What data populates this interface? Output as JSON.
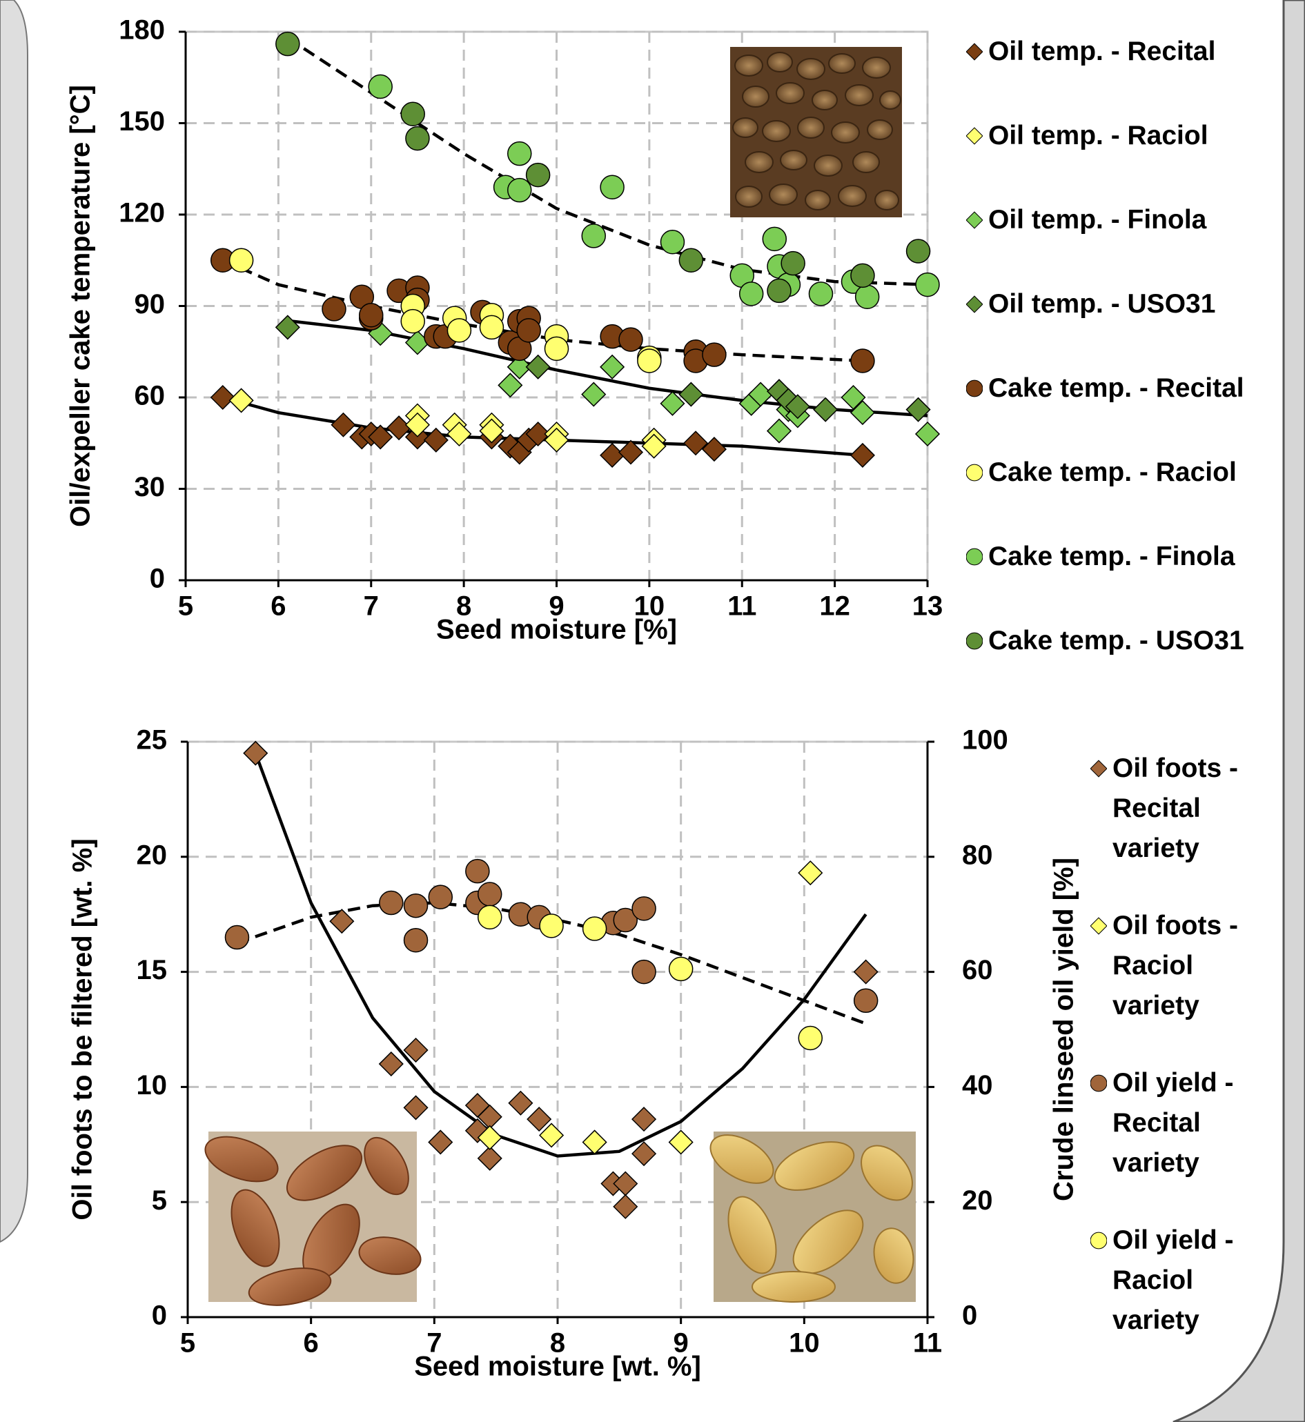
{
  "chart_data": [
    {
      "type": "scatter",
      "x_label": "Seed moisture [%]",
      "y_label": "Oil/expeller cake temperature [°C]",
      "xlim": [
        5,
        13
      ],
      "ylim": [
        0,
        180
      ],
      "xticks": [
        5,
        6,
        7,
        8,
        9,
        10,
        11,
        12,
        13
      ],
      "yticks": [
        0,
        30,
        60,
        90,
        120,
        150,
        180
      ],
      "grid": true,
      "legend": "right",
      "series": [
        {
          "name": "Oil temp. - Recital",
          "color": "#7a3e12",
          "marker": "diamond",
          "x": [
            5.4,
            6.7,
            6.9,
            7.0,
            7.1,
            7.3,
            7.5,
            7.7,
            8.3,
            8.5,
            8.6,
            8.7,
            8.8,
            9.6,
            9.8,
            10.5,
            10.7,
            12.3
          ],
          "values": [
            60,
            51,
            47,
            48,
            47,
            50,
            47,
            46,
            47,
            44,
            42,
            46,
            48,
            41,
            42,
            45,
            43,
            41
          ]
        },
        {
          "name": "Oil temp. - Raciol",
          "color": "#ffff70",
          "marker": "diamond",
          "x": [
            5.6,
            7.5,
            7.5,
            7.9,
            7.95,
            8.3,
            8.3,
            9.0,
            9.0,
            10.05,
            10.05
          ],
          "values": [
            59,
            54,
            51,
            51,
            48,
            51,
            49,
            48,
            46,
            46,
            44
          ]
        },
        {
          "name": "Oil temp. - Finola",
          "color": "#7ccd55",
          "marker": "diamond",
          "x": [
            7.1,
            7.5,
            8.5,
            8.6,
            9.4,
            9.6,
            10.25,
            11.1,
            11.2,
            11.4,
            11.5,
            11.6,
            12.2,
            12.3,
            13.0
          ],
          "values": [
            81,
            78,
            64,
            70,
            61,
            70,
            58,
            58,
            61,
            49,
            56,
            54,
            60,
            55,
            48
          ]
        },
        {
          "name": "Oil temp. - USO31",
          "color": "#5e8f35",
          "marker": "diamond",
          "x": [
            6.1,
            8.8,
            10.45,
            11.4,
            11.5,
            11.6,
            11.9,
            12.9
          ],
          "values": [
            83,
            70,
            61,
            62,
            59,
            57,
            56,
            56
          ]
        },
        {
          "name": "Cake temp. - Recital",
          "color": "#7a3e12",
          "marker": "circle",
          "x": [
            5.4,
            6.6,
            6.9,
            7.0,
            7.0,
            7.3,
            7.5,
            7.5,
            7.7,
            7.8,
            8.2,
            8.5,
            8.6,
            8.6,
            8.7,
            8.7,
            9.6,
            9.8,
            10.5,
            10.5,
            10.7,
            12.3
          ],
          "values": [
            105,
            89,
            93,
            86,
            87,
            95,
            96,
            92,
            80,
            80,
            88,
            78,
            76,
            85,
            86,
            82,
            80,
            79,
            75,
            72,
            74,
            72
          ]
        },
        {
          "name": "Cake temp. - Raciol",
          "color": "#ffff70",
          "marker": "circle",
          "x": [
            5.6,
            7.45,
            7.45,
            7.9,
            7.95,
            8.3,
            8.3,
            9.0,
            9.0,
            10.0,
            10.0
          ],
          "values": [
            105,
            90,
            85,
            86,
            82,
            87,
            83,
            80,
            76,
            73,
            72
          ]
        },
        {
          "name": "Cake temp. - Finola",
          "color": "#7ccd55",
          "marker": "circle",
          "x": [
            7.1,
            8.45,
            8.6,
            8.6,
            9.4,
            9.6,
            10.25,
            11.0,
            11.1,
            11.35,
            11.4,
            11.5,
            11.85,
            12.2,
            12.35,
            13.0
          ],
          "values": [
            162,
            129,
            140,
            128,
            113,
            129,
            111,
            100,
            94,
            112,
            103,
            97,
            94,
            98,
            93,
            97
          ]
        },
        {
          "name": "Cake temp. - USO31",
          "color": "#5e8f35",
          "marker": "circle",
          "x": [
            6.1,
            7.45,
            7.5,
            8.8,
            10.45,
            11.4,
            11.55,
            12.3,
            12.9
          ],
          "values": [
            176,
            153,
            145,
            133,
            105,
            95,
            104,
            100,
            108
          ]
        }
      ],
      "trendlines": [
        {
          "style": "dashed",
          "x": [
            6.1,
            7,
            8,
            9,
            10,
            11,
            12,
            13
          ],
          "values": [
            178,
            160,
            140,
            122,
            110,
            102,
            98,
            97
          ]
        },
        {
          "style": "dashed",
          "x": [
            5.4,
            6,
            7,
            8,
            9,
            10,
            11,
            12.3
          ],
          "values": [
            105,
            97,
            90,
            84,
            79,
            76,
            74,
            72
          ]
        },
        {
          "style": "solid",
          "x": [
            6.15,
            7,
            8,
            9,
            10,
            11,
            12,
            13
          ],
          "values": [
            85,
            82,
            76,
            69,
            63,
            59,
            56,
            54
          ]
        },
        {
          "style": "solid",
          "x": [
            5.4,
            6,
            7,
            8,
            9,
            10,
            11,
            12.3
          ],
          "values": [
            60,
            55,
            50,
            47,
            46,
            45,
            44,
            41
          ]
        }
      ]
    },
    {
      "type": "scatter",
      "x_label": "Seed moisture [wt. %]",
      "y_label": "Oil foots to be filtered  [wt. %]",
      "y2_label": "Crude linseed oil yield [%]",
      "xlim": [
        5,
        11
      ],
      "ylim": [
        0,
        25
      ],
      "y2lim": [
        0,
        100
      ],
      "xticks": [
        5,
        6,
        7,
        8,
        9,
        10,
        11
      ],
      "yticks": [
        0,
        5,
        10,
        15,
        20,
        25
      ],
      "y2ticks": [
        0,
        20,
        40,
        60,
        80,
        100
      ],
      "grid": true,
      "legend": "right",
      "series": [
        {
          "name": "Oil foots - Recital variety",
          "color": "#a0653a",
          "marker": "diamond",
          "x": [
            5.55,
            6.25,
            6.65,
            6.85,
            6.85,
            7.05,
            7.35,
            7.35,
            7.45,
            7.45,
            7.7,
            7.85,
            8.45,
            8.55,
            8.55,
            8.7,
            8.7,
            10.5
          ],
          "values": [
            24.5,
            17.2,
            11,
            11.6,
            9.1,
            7.6,
            9.2,
            8.1,
            8.7,
            6.9,
            9.3,
            8.6,
            5.8,
            5.8,
            4.8,
            8.6,
            7.1,
            15
          ]
        },
        {
          "name": "Oil foots - Raciol variety",
          "color": "#ffff70",
          "marker": "diamond",
          "x": [
            7.45,
            7.95,
            8.3,
            9.0,
            10.05
          ],
          "values": [
            7.8,
            7.9,
            7.6,
            7.6,
            19.3
          ]
        },
        {
          "name": "Oil yield - Recital variety",
          "color": "#a0653a",
          "marker": "circle",
          "axis": "y2",
          "x": [
            5.4,
            6.65,
            6.85,
            6.85,
            7.05,
            7.35,
            7.35,
            7.45,
            7.7,
            7.85,
            8.45,
            8.55,
            8.7,
            8.7,
            10.5
          ],
          "values": [
            66,
            72,
            71.5,
            65.5,
            73,
            77.5,
            72,
            73.5,
            70,
            69.5,
            68.5,
            69,
            71,
            60,
            55
          ]
        },
        {
          "name": "Oil yield - Raciol variety",
          "color": "#ffff70",
          "marker": "circle",
          "axis": "y2",
          "x": [
            7.45,
            7.95,
            8.3,
            9.0,
            10.05
          ],
          "values": [
            69.5,
            68,
            67.5,
            60.5,
            48.5
          ]
        }
      ],
      "trendlines": [
        {
          "style": "solid",
          "x": [
            5.55,
            6,
            6.5,
            7,
            7.5,
            8,
            8.5,
            9,
            9.5,
            10,
            10.5
          ],
          "values": [
            24.5,
            18,
            13,
            9.8,
            7.9,
            7,
            7.2,
            8.5,
            10.8,
            13.8,
            17.5
          ]
        },
        {
          "style": "dashed",
          "axis": "y2",
          "x": [
            5.4,
            6,
            6.5,
            7,
            7.5,
            8,
            8.5,
            9,
            9.5,
            10,
            10.5
          ],
          "values": [
            65,
            69.5,
            71.5,
            72,
            71,
            69,
            66.5,
            63,
            59,
            55,
            51
          ]
        }
      ]
    }
  ]
}
